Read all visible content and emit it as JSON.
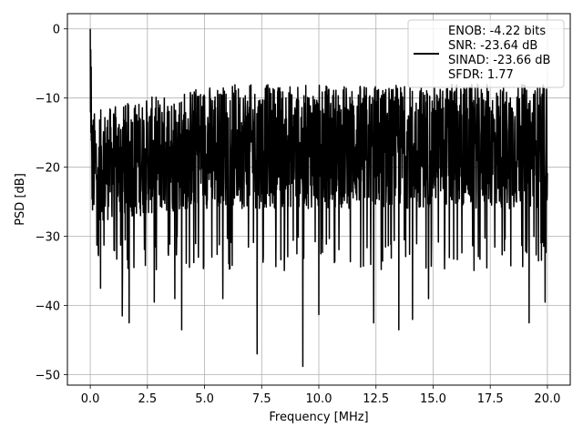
{
  "chart_data": {
    "type": "line",
    "xlabel": "Frequency [MHz]",
    "ylabel": "PSD [dB]",
    "xlim": [
      -1.0,
      21.0
    ],
    "ylim": [
      -51.5,
      2.2
    ],
    "xticks": [
      0.0,
      2.5,
      5.0,
      7.5,
      10.0,
      12.5,
      15.0,
      17.5,
      20.0
    ],
    "xtick_labels": [
      "0.0",
      "2.5",
      "5.0",
      "7.5",
      "10.0",
      "12.5",
      "15.0",
      "17.5",
      "20.0"
    ],
    "yticks": [
      0,
      -10,
      -20,
      -30,
      -40,
      -50
    ],
    "ytick_labels": [
      "0",
      "−10",
      "−20",
      "−30",
      "−40",
      "−50"
    ],
    "grid": true,
    "legend_position": "top-right",
    "series": [
      {
        "name": "ENOB: -4.22 bits\nSNR: -23.64 dB\nSINAD: -23.66 dB\nSFDR: 1.77",
        "color": "#000000",
        "x_range": [
          0.0,
          20.0
        ],
        "description_values": {
          "peak_at_0MHz": 0.0,
          "typical_upper_envelope": -8,
          "typical_lower_envelope": -28
        },
        "dips": [
          {
            "x": 0.35,
            "y": -32.5
          },
          {
            "x": 0.45,
            "y": -37.5
          },
          {
            "x": 1.4,
            "y": -41.5
          },
          {
            "x": 1.7,
            "y": -42.5
          },
          {
            "x": 2.8,
            "y": -39.5
          },
          {
            "x": 3.7,
            "y": -39.0
          },
          {
            "x": 4.0,
            "y": -43.5
          },
          {
            "x": 5.8,
            "y": -39.0
          },
          {
            "x": 7.3,
            "y": -47.0
          },
          {
            "x": 9.3,
            "y": -48.8
          },
          {
            "x": 10.0,
            "y": -41.3
          },
          {
            "x": 12.4,
            "y": -42.5
          },
          {
            "x": 13.5,
            "y": -43.5
          },
          {
            "x": 14.1,
            "y": -42.0
          },
          {
            "x": 14.8,
            "y": -39.0
          },
          {
            "x": 19.2,
            "y": -42.5
          },
          {
            "x": 19.9,
            "y": -39.5
          }
        ],
        "peaks": [
          {
            "x": 0.0,
            "y": 0.0
          },
          {
            "x": 0.05,
            "y": -5.5
          }
        ]
      }
    ],
    "legend_lines": [
      "ENOB: -4.22 bits",
      "SNR: -23.64 dB",
      "SINAD: -23.66 dB",
      "SFDR: 1.77"
    ]
  }
}
